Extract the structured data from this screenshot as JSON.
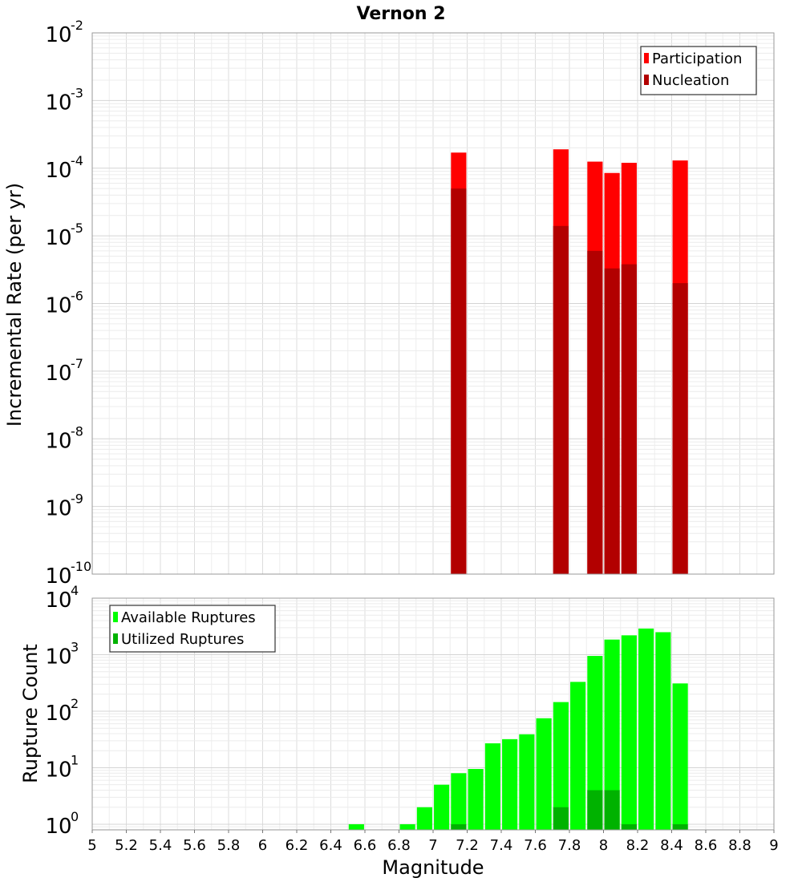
{
  "chart_data": [
    {
      "type": "bar",
      "title": "Vernon 2",
      "xlabel": "",
      "ylabel": "Incremental Rate (per yr)",
      "yscale": "log",
      "ylim_exp": [
        -10,
        -2
      ],
      "ytick_exponents": [
        "-10",
        "-9",
        "-8",
        "-7",
        "-6",
        "-5",
        "-4",
        "-3",
        "-2"
      ],
      "ytick_base": "10",
      "xlim": [
        5,
        9
      ],
      "bar_width": 0.09,
      "legend": {
        "position": "top-right",
        "items": [
          {
            "label": "Participation",
            "color": "#ff0000"
          },
          {
            "label": "Nucleation",
            "color": "#b20000"
          }
        ]
      },
      "series": [
        {
          "name": "Participation",
          "color": "#ff0000",
          "points": [
            {
              "x": 7.15,
              "y": 0.00017
            },
            {
              "x": 7.75,
              "y": 0.00019
            },
            {
              "x": 7.95,
              "y": 0.000125
            },
            {
              "x": 8.05,
              "y": 8.5e-05
            },
            {
              "x": 8.15,
              "y": 0.00012
            },
            {
              "x": 8.45,
              "y": 0.00013
            }
          ]
        },
        {
          "name": "Nucleation",
          "color": "#b20000",
          "points": [
            {
              "x": 7.15,
              "y": 5e-05
            },
            {
              "x": 7.75,
              "y": 1.4e-05
            },
            {
              "x": 7.95,
              "y": 6e-06
            },
            {
              "x": 8.05,
              "y": 3.3e-06
            },
            {
              "x": 8.15,
              "y": 3.8e-06
            },
            {
              "x": 8.45,
              "y": 2e-06
            }
          ]
        }
      ]
    },
    {
      "type": "bar",
      "title": "",
      "xlabel": "Magnitude",
      "ylabel": "Rupture Count",
      "yscale": "log",
      "ylim_exp": [
        -0.1,
        4
      ],
      "ytick_exponents": [
        "0",
        "1",
        "2",
        "3",
        "4"
      ],
      "ytick_base": "10",
      "xlim": [
        5,
        9
      ],
      "xticks": [
        "5",
        "5.2",
        "5.4",
        "5.6",
        "5.8",
        "6",
        "6.2",
        "6.4",
        "6.6",
        "6.8",
        "7",
        "7.2",
        "7.4",
        "7.6",
        "7.8",
        "8",
        "8.2",
        "8.4",
        "8.6",
        "8.8",
        "9"
      ],
      "bar_width": 0.09,
      "legend": {
        "position": "top-left",
        "items": [
          {
            "label": "Available Ruptures",
            "color": "#00ff00"
          },
          {
            "label": "Utilized Ruptures",
            "color": "#00b200"
          }
        ]
      },
      "series": [
        {
          "name": "Available Ruptures",
          "color": "#00ff00",
          "points": [
            {
              "x": 6.55,
              "y": 1
            },
            {
              "x": 6.85,
              "y": 1
            },
            {
              "x": 6.95,
              "y": 2
            },
            {
              "x": 7.05,
              "y": 5
            },
            {
              "x": 7.15,
              "y": 8
            },
            {
              "x": 7.25,
              "y": 9.5
            },
            {
              "x": 7.35,
              "y": 27
            },
            {
              "x": 7.45,
              "y": 32
            },
            {
              "x": 7.55,
              "y": 39
            },
            {
              "x": 7.65,
              "y": 75
            },
            {
              "x": 7.75,
              "y": 145
            },
            {
              "x": 7.85,
              "y": 330
            },
            {
              "x": 7.95,
              "y": 950
            },
            {
              "x": 8.05,
              "y": 1850
            },
            {
              "x": 8.15,
              "y": 2200
            },
            {
              "x": 8.25,
              "y": 2900
            },
            {
              "x": 8.35,
              "y": 2500
            },
            {
              "x": 8.45,
              "y": 310
            }
          ]
        },
        {
          "name": "Utilized Ruptures",
          "color": "#00b200",
          "points": [
            {
              "x": 7.15,
              "y": 1
            },
            {
              "x": 7.75,
              "y": 2
            },
            {
              "x": 7.95,
              "y": 4
            },
            {
              "x": 8.05,
              "y": 4
            },
            {
              "x": 8.15,
              "y": 1
            },
            {
              "x": 8.45,
              "y": 1
            }
          ]
        }
      ]
    }
  ]
}
